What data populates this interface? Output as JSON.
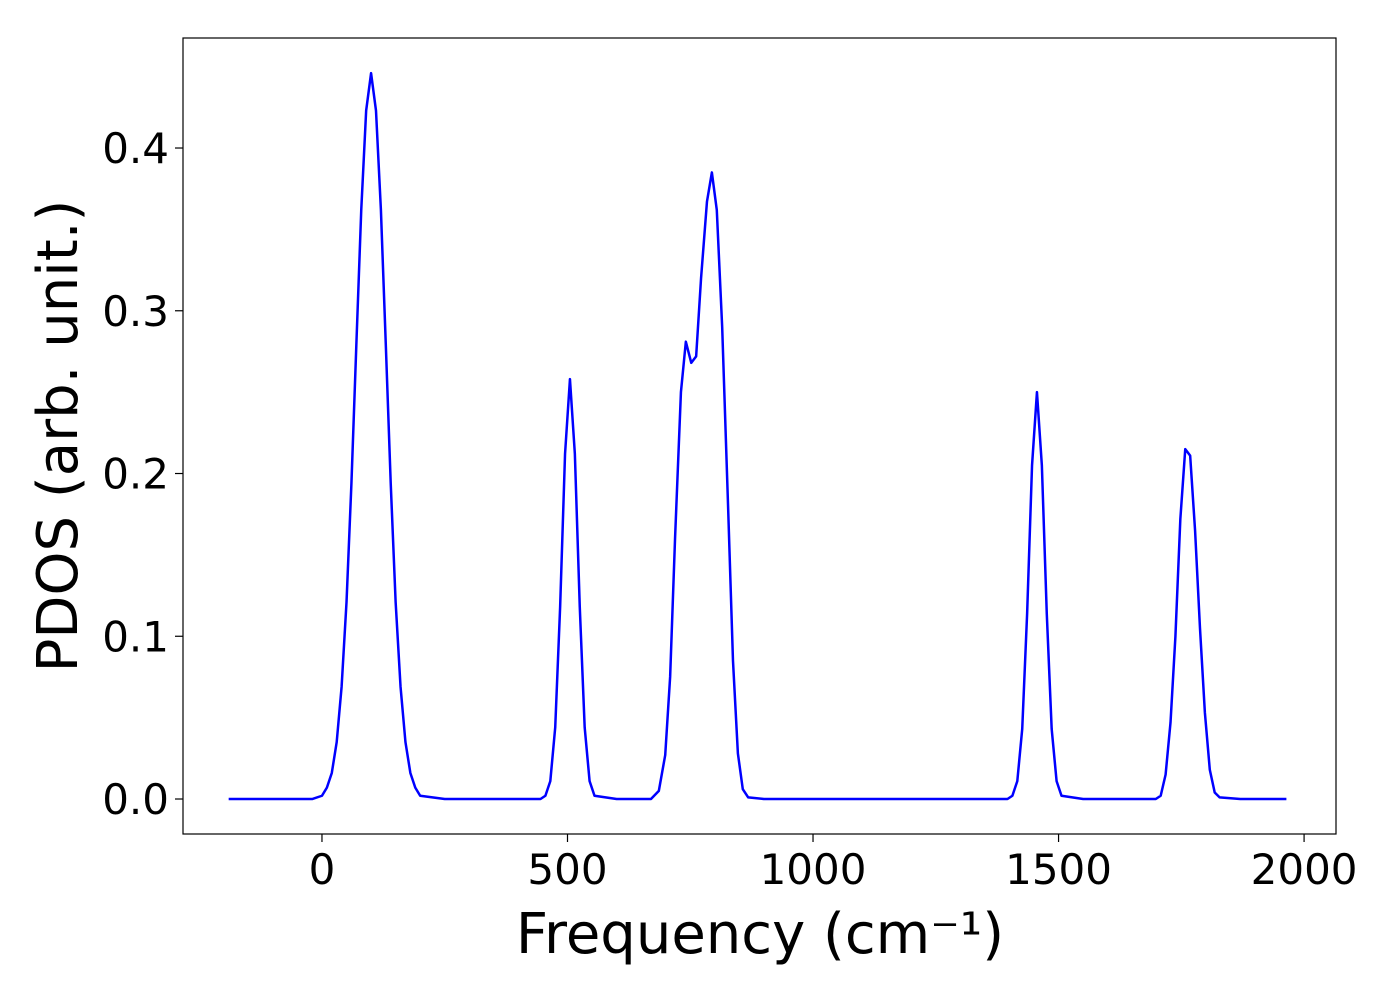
{
  "chart_data": {
    "type": "line",
    "xlabel": "Frequency (cm⁻¹)",
    "ylabel": "PDOS (arb. unit.)",
    "color": "#0000ff",
    "x": [
      -190,
      -100,
      -20,
      0,
      10,
      20,
      30,
      40,
      50,
      60,
      70,
      80,
      90,
      100,
      110,
      120,
      130,
      140,
      150,
      160,
      170,
      180,
      190,
      200,
      250,
      400,
      445,
      455,
      465,
      475,
      485,
      495,
      505,
      515,
      525,
      535,
      545,
      555,
      600,
      670,
      686,
      699,
      709,
      719,
      731,
      741,
      752,
      762,
      772,
      784,
      794,
      804,
      815,
      827,
      837,
      847,
      857,
      868,
      900,
      1300,
      1396,
      1406,
      1416,
      1426,
      1436,
      1446,
      1456,
      1466,
      1476,
      1486,
      1496,
      1506,
      1550,
      1698,
      1708,
      1718,
      1728,
      1738,
      1748,
      1758,
      1768,
      1778,
      1788,
      1798,
      1808,
      1818,
      1828,
      1870,
      1964
    ],
    "values": [
      0,
      0,
      0,
      0.002,
      0.007,
      0.016,
      0.035,
      0.069,
      0.121,
      0.194,
      0.279,
      0.362,
      0.423,
      0.446,
      0.423,
      0.362,
      0.279,
      0.194,
      0.121,
      0.069,
      0.035,
      0.016,
      0.007,
      0.002,
      0,
      0,
      0,
      0.002,
      0.011,
      0.044,
      0.118,
      0.212,
      0.258,
      0.212,
      0.118,
      0.044,
      0.011,
      0.002,
      0,
      0,
      0.005,
      0.027,
      0.075,
      0.16,
      0.25,
      0.281,
      0.268,
      0.272,
      0.32,
      0.367,
      0.385,
      0.362,
      0.29,
      0.18,
      0.085,
      0.028,
      0.006,
      0.001,
      0,
      0,
      0,
      0.002,
      0.011,
      0.043,
      0.114,
      0.205,
      0.25,
      0.205,
      0.114,
      0.043,
      0.011,
      0.002,
      0,
      0,
      0.002,
      0.015,
      0.047,
      0.1,
      0.172,
      0.215,
      0.211,
      0.165,
      0.105,
      0.053,
      0.018,
      0.004,
      0.001,
      0,
      0
    ],
    "xlim": [
      -283,
      2065
    ],
    "ylim": [
      -0.0215,
      0.4676
    ],
    "xticks": [
      0,
      500,
      1000,
      1500,
      2000
    ],
    "yticks": [
      {
        "value": 0,
        "label": "0.0"
      },
      0.1,
      0.2,
      0.3,
      0.4
    ]
  }
}
